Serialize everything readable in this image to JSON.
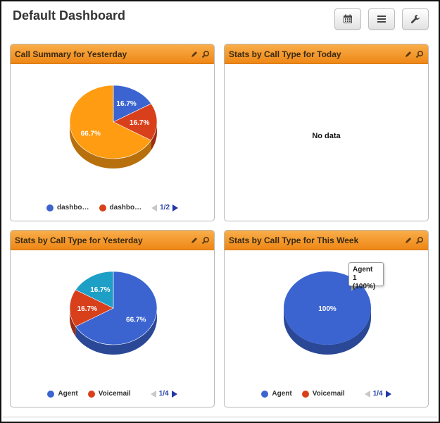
{
  "page": {
    "title": "Default Dashboard"
  },
  "toolbar": {
    "buttons": [
      "calendar-icon",
      "list-icon",
      "wrench-icon"
    ]
  },
  "colors": {
    "blue": "#3b64d1",
    "red": "#d8401c",
    "orange": "#ff9c12",
    "teal": "#1e9fc6",
    "header": "#f29a2a"
  },
  "panels": [
    {
      "title": "Call Summary for Yesterday",
      "legend": [
        {
          "label": "dashbo…",
          "color": "#3b64d1"
        },
        {
          "label": "dashbo…",
          "color": "#d8401c"
        }
      ],
      "pager": "1/2"
    },
    {
      "title": "Stats by Call Type for Today",
      "no_data": "No data"
    },
    {
      "title": "Stats by Call Type for Yesterday",
      "legend": [
        {
          "label": "Agent",
          "color": "#3b64d1"
        },
        {
          "label": "Voicemail",
          "color": "#d8401c"
        }
      ],
      "pager": "1/4"
    },
    {
      "title": "Stats by Call Type for This Week",
      "legend": [
        {
          "label": "Agent",
          "color": "#3b64d1"
        },
        {
          "label": "Voicemail",
          "color": "#d8401c"
        }
      ],
      "pager": "1/4",
      "tooltip": {
        "line1": "Agent",
        "line2": "1 (100%)"
      }
    }
  ],
  "chart_data": [
    {
      "type": "pie",
      "title": "Call Summary for Yesterday",
      "slices": [
        {
          "name": "",
          "value": 16.7,
          "label": "16.7%",
          "color": "#3b64d1"
        },
        {
          "name": "",
          "value": 16.7,
          "label": "16.7%",
          "color": "#d8401c"
        },
        {
          "name": "",
          "value": 66.7,
          "label": "66.7%",
          "color": "#ff9c12"
        }
      ]
    },
    {
      "type": "pie",
      "title": "Stats by Call Type for Yesterday",
      "slices": [
        {
          "name": "Agent",
          "value": 66.7,
          "label": "66.7%",
          "color": "#3b64d1"
        },
        {
          "name": "Voicemail",
          "value": 16.7,
          "label": "16.7%",
          "color": "#d8401c"
        },
        {
          "name": "",
          "value": 16.7,
          "label": "16.7%",
          "color": "#1e9fc6"
        }
      ]
    },
    {
      "type": "pie",
      "title": "Stats by Call Type for This Week",
      "slices": [
        {
          "name": "Agent",
          "value": 100,
          "label": "100%",
          "color": "#3b64d1"
        }
      ]
    }
  ]
}
